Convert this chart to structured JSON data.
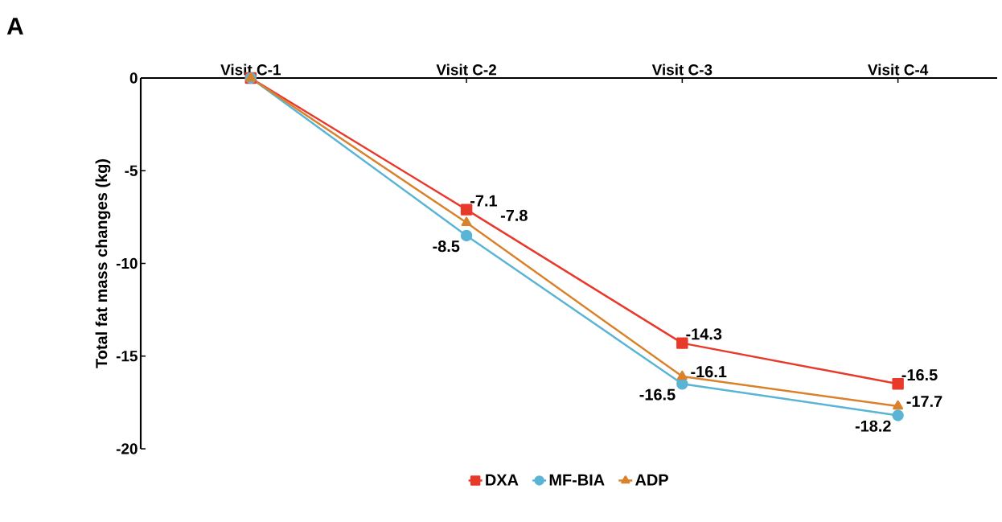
{
  "chart_data": {
    "type": "line",
    "ylabel": "Total fat mass changes (kg)",
    "annotations": [
      "A"
    ],
    "categories": [
      "Visit C-1",
      "Visit C-2",
      "Visit C-3",
      "Visit C-4"
    ],
    "series": [
      {
        "name": "DXA",
        "color": "#e8392b",
        "marker": "square",
        "values": [
          0,
          -7.1,
          -14.3,
          -16.5
        ],
        "value_labels": [
          null,
          "-7.1",
          "-14.3",
          "-16.5"
        ]
      },
      {
        "name": "MF-BIA",
        "color": "#5ab4d6",
        "marker": "circle",
        "values": [
          0,
          -8.5,
          -16.5,
          -18.2
        ],
        "value_labels": [
          null,
          "-8.5",
          "-16.5",
          "-18.2"
        ]
      },
      {
        "name": "ADP",
        "color": "#d9822b",
        "marker": "triangle",
        "values": [
          0,
          -7.8,
          -16.1,
          -17.7
        ],
        "value_labels": [
          null,
          "-7.8",
          "-16.1",
          "-17.7"
        ]
      }
    ],
    "ylim": [
      -20,
      0
    ],
    "yticks": [
      -20,
      -15,
      -10,
      -5,
      0
    ],
    "grid": false,
    "legend": "bottom",
    "line_style": "solid"
  }
}
